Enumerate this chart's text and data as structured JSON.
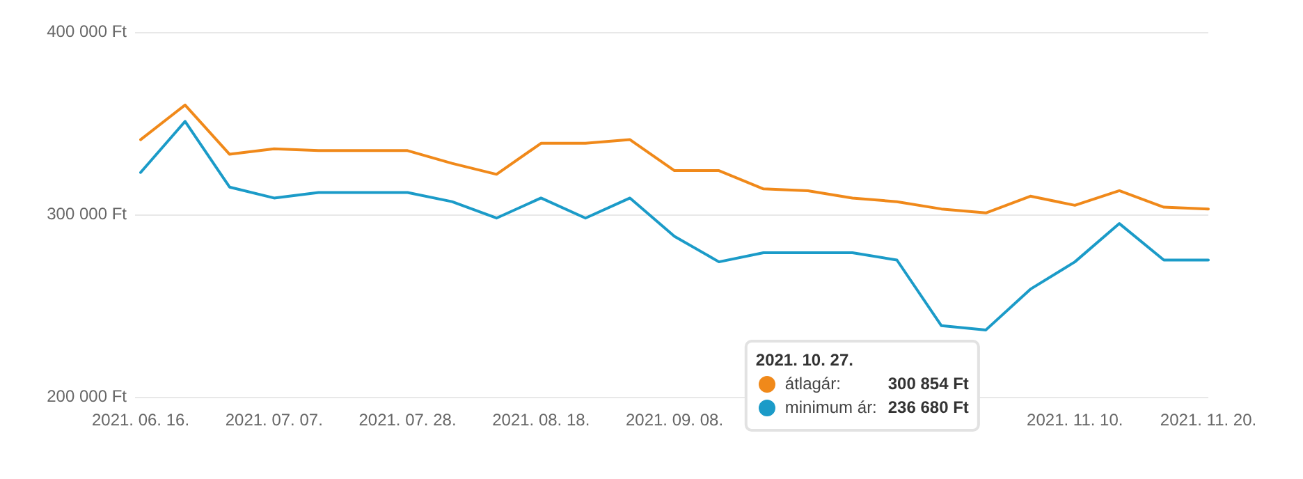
{
  "chart_data": {
    "type": "line",
    "categories": [
      "2021. 06. 16.",
      null,
      null,
      "2021. 07. 07.",
      null,
      null,
      "2021. 07. 28.",
      null,
      null,
      "2021. 08. 18.",
      null,
      null,
      "2021. 09. 08.",
      null,
      null,
      null,
      null,
      null,
      null,
      null,
      null,
      "2021. 11. 10.",
      null,
      null,
      "2021. 11. 20."
    ],
    "series": [
      {
        "name": "átlagár:",
        "color": "#f0891a",
        "values": [
          341000,
          360000,
          333000,
          336000,
          335000,
          335000,
          335000,
          328000,
          322000,
          339000,
          339000,
          341000,
          324000,
          324000,
          314000,
          313000,
          309000,
          307000,
          303000,
          300854,
          310000,
          305000,
          313000,
          304000,
          303000
        ]
      },
      {
        "name": "minimum ár:",
        "color": "#1b9bc8",
        "values": [
          323000,
          351000,
          315000,
          309000,
          312000,
          312000,
          312000,
          307000,
          298000,
          309000,
          298000,
          309000,
          288000,
          274000,
          279000,
          279000,
          279000,
          275000,
          239000,
          236680,
          259000,
          274000,
          295000,
          275000,
          275000
        ]
      }
    ],
    "ylim": [
      200000,
      400000
    ],
    "yticks": [
      {
        "value": 200000,
        "label": "200 000 Ft"
      },
      {
        "value": 300000,
        "label": "300 000 Ft"
      },
      {
        "value": 400000,
        "label": "400 000 Ft"
      }
    ],
    "grid": "y",
    "legend": "bottom",
    "annotations": [
      "2021. 10. 27.",
      "300 854 Ft",
      "236 680 Ft"
    ]
  }
}
